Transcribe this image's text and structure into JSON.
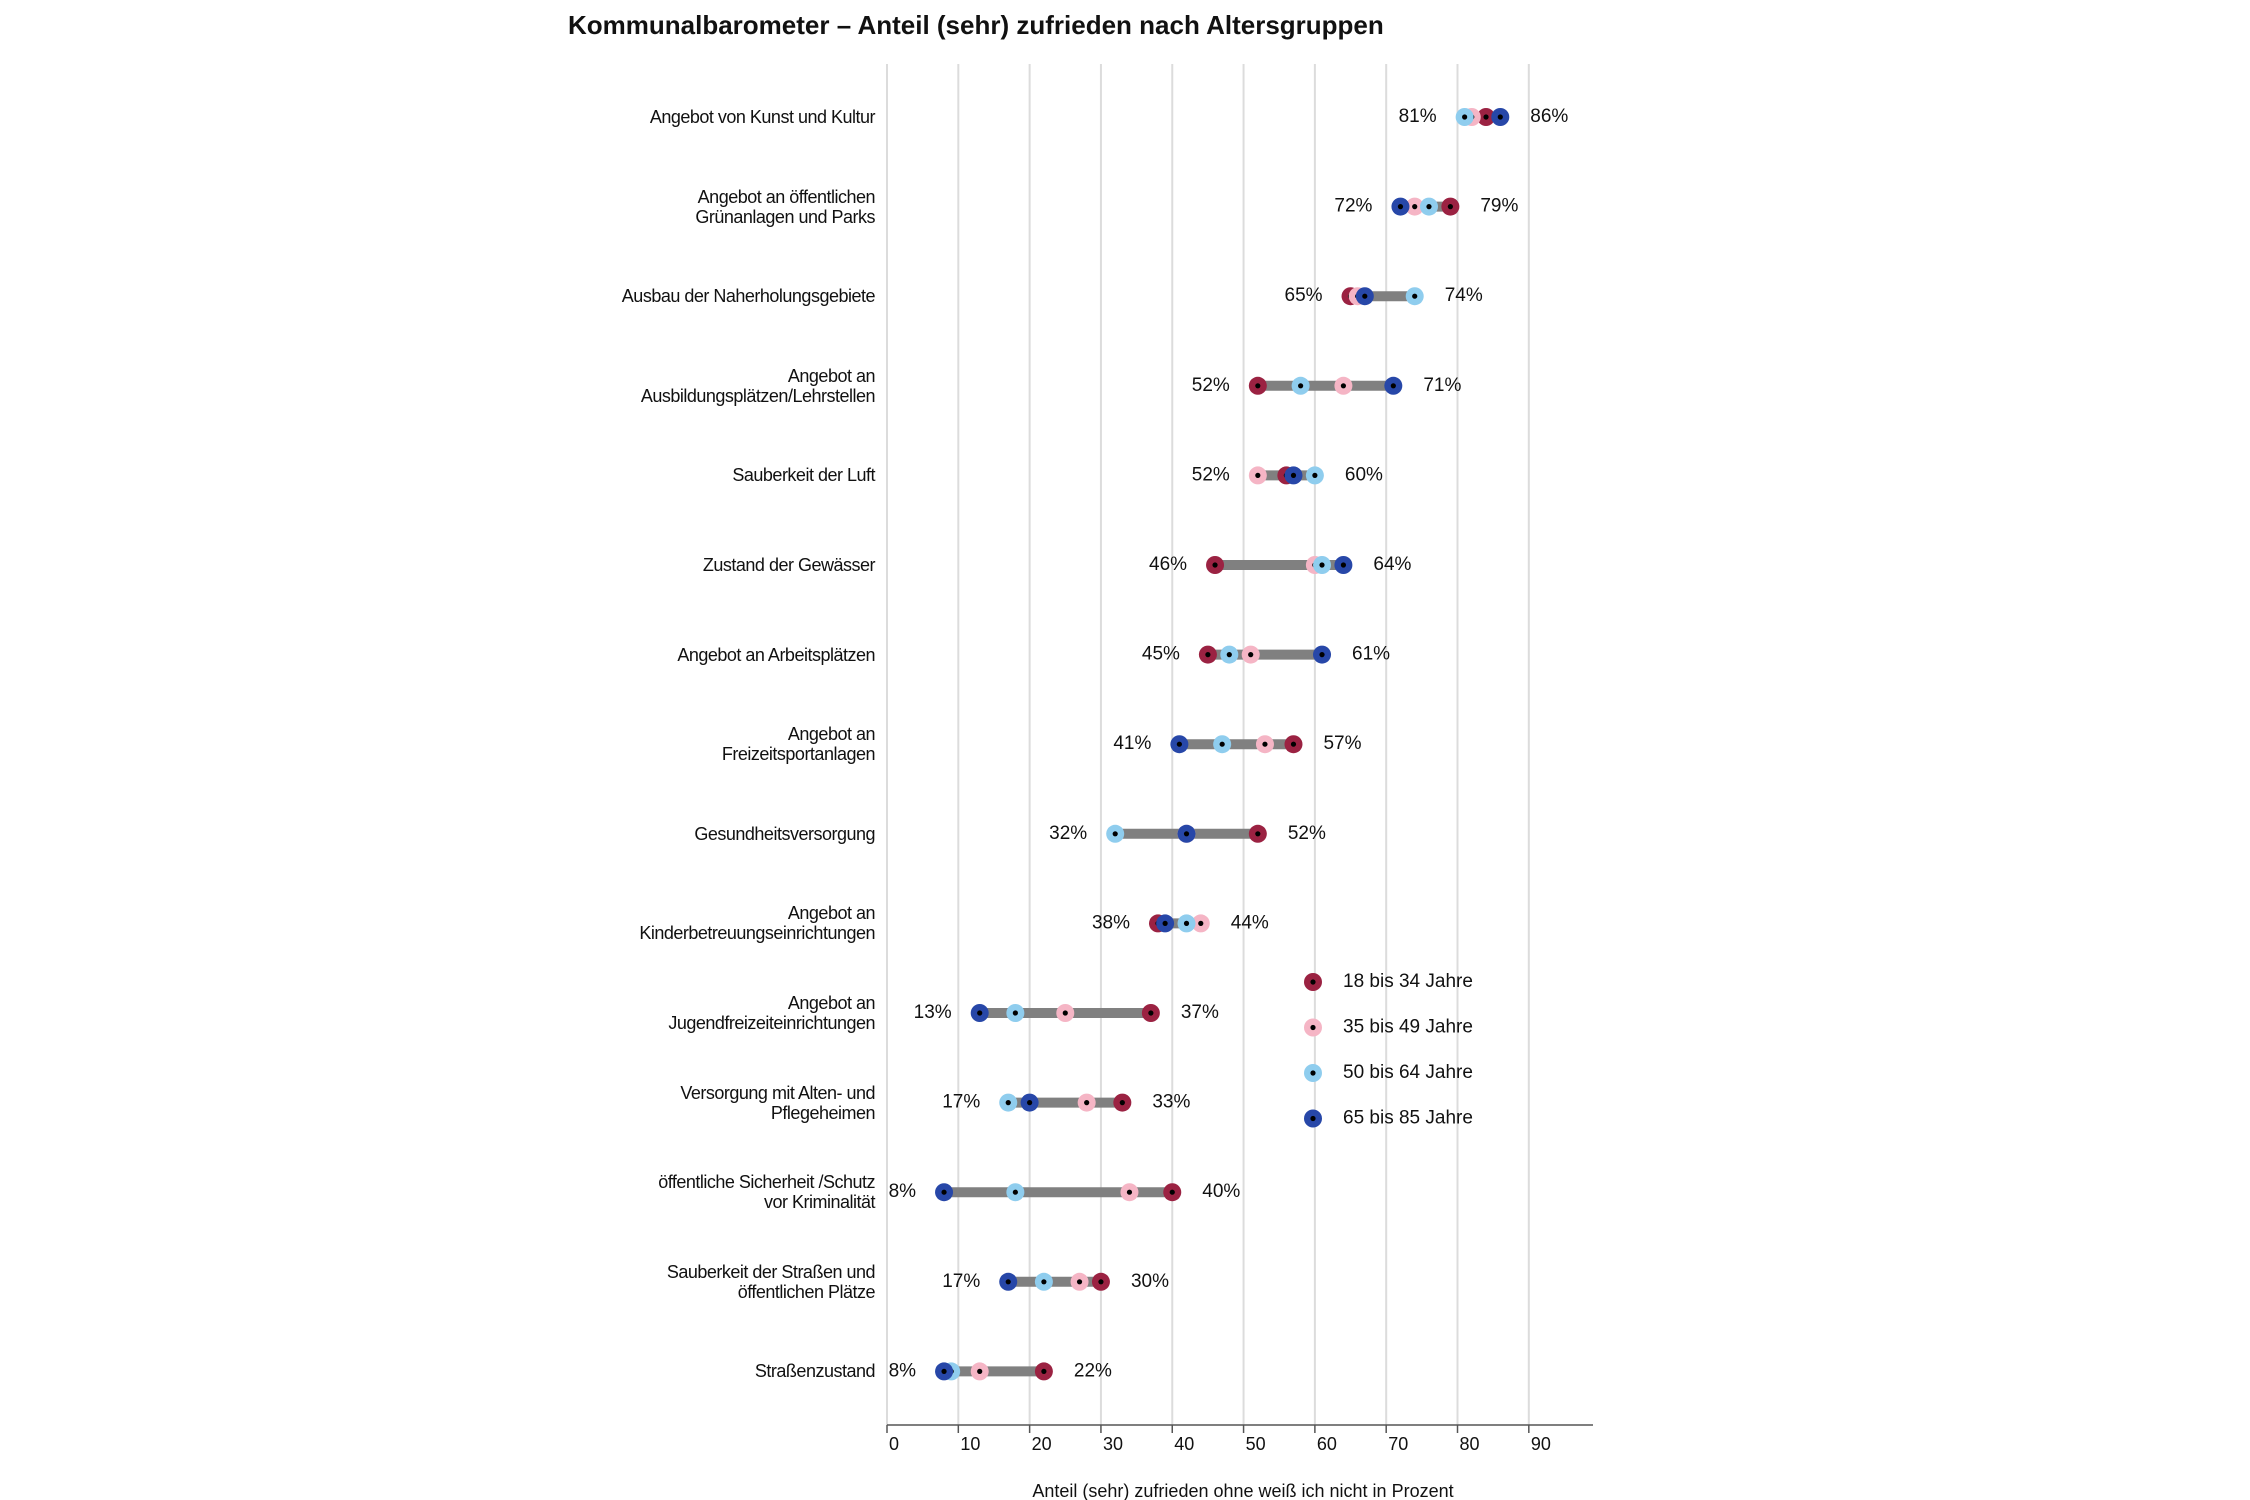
{
  "chart_data": {
    "type": "dumbbell",
    "title": "Kommunalbarometer – Anteil (sehr) zufrieden nach Altersgruppen",
    "xlabel": "Anteil (sehr) zufrieden ohne weiß ich nicht in Prozent",
    "categories": [
      "Angebot von Kunst und Kultur",
      "Angebot an öffentlichen\nGrünanlagen und Parks",
      "Ausbau der Naherholungsgebiete",
      "Angebot an\nAusbildungsplätzen/Lehrstellen",
      "Sauberkeit der Luft",
      "Zustand der Gewässer",
      "Angebot an Arbeitsplätzen",
      "Angebot an\nFreizeitsportanlagen",
      "Gesundheitsversorgung",
      "Angebot an\nKinderbetreuungseinrichtungen",
      "Angebot an\nJugendfreizeiteinrichtungen",
      "Versorgung mit Alten- und\nPflegeheimen",
      "öffentliche Sicherheit /Schutz\nvor Kriminalität",
      "Sauberkeit der Straßen und\nöffentlichen Plätze",
      "Straßenzustand"
    ],
    "series": [
      {
        "name": "18 bis 34 Jahre",
        "color": "#9b2242",
        "values": [
          84,
          79,
          65,
          52,
          56,
          46,
          45,
          57,
          52,
          38,
          37,
          33,
          40,
          30,
          22
        ]
      },
      {
        "name": "35 bis 49 Jahre",
        "color": "#f5b5c5",
        "values": [
          82,
          74,
          66,
          64,
          52,
          60,
          51,
          53,
          42,
          44,
          25,
          28,
          34,
          27,
          13
        ]
      },
      {
        "name": "50 bis 64 Jahre",
        "color": "#8fcdee",
        "values": [
          81,
          76,
          74,
          58,
          60,
          61,
          48,
          47,
          32,
          42,
          18,
          17,
          18,
          22,
          9
        ]
      },
      {
        "name": "65 bis 85 Jahre",
        "color": "#2747a8",
        "values": [
          86,
          72,
          67,
          71,
          57,
          64,
          61,
          41,
          42,
          39,
          13,
          20,
          8,
          17,
          8
        ]
      }
    ],
    "min_labels": [
      "81%",
      "72%",
      "65%",
      "52%",
      "52%",
      "46%",
      "45%",
      "41%",
      "32%",
      "38%",
      "13%",
      "17%",
      "8%",
      "17%",
      "8%"
    ],
    "max_labels": [
      "86%",
      "79%",
      "74%",
      "71%",
      "60%",
      "64%",
      "61%",
      "57%",
      "52%",
      "44%",
      "37%",
      "33%",
      "40%",
      "30%",
      "22%"
    ],
    "xlim": [
      0,
      99
    ],
    "xticks": [
      0,
      10,
      20,
      30,
      40,
      50,
      60,
      70,
      80,
      90
    ],
    "grid": true,
    "connector_color": "#808080"
  }
}
